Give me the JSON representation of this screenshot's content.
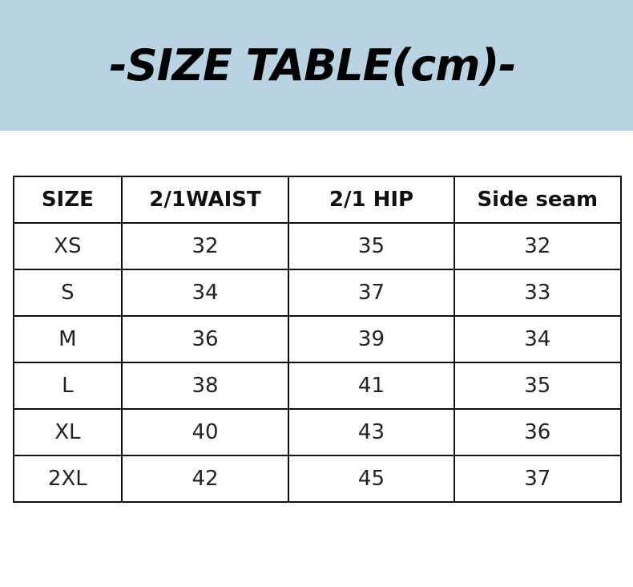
{
  "title": "-SIZE TABLE(cm)-",
  "colors": {
    "banner": "#b9d3e2"
  },
  "table": {
    "headers": [
      "SIZE",
      "2/1WAIST",
      "2/1 HIP",
      "Side seam"
    ],
    "rows": [
      [
        "XS",
        "32",
        "35",
        "32"
      ],
      [
        "S",
        "34",
        "37",
        "33"
      ],
      [
        "M",
        "36",
        "39",
        "34"
      ],
      [
        "L",
        "38",
        "41",
        "35"
      ],
      [
        "XL",
        "40",
        "43",
        "36"
      ],
      [
        "2XL",
        "42",
        "45",
        "37"
      ]
    ]
  }
}
